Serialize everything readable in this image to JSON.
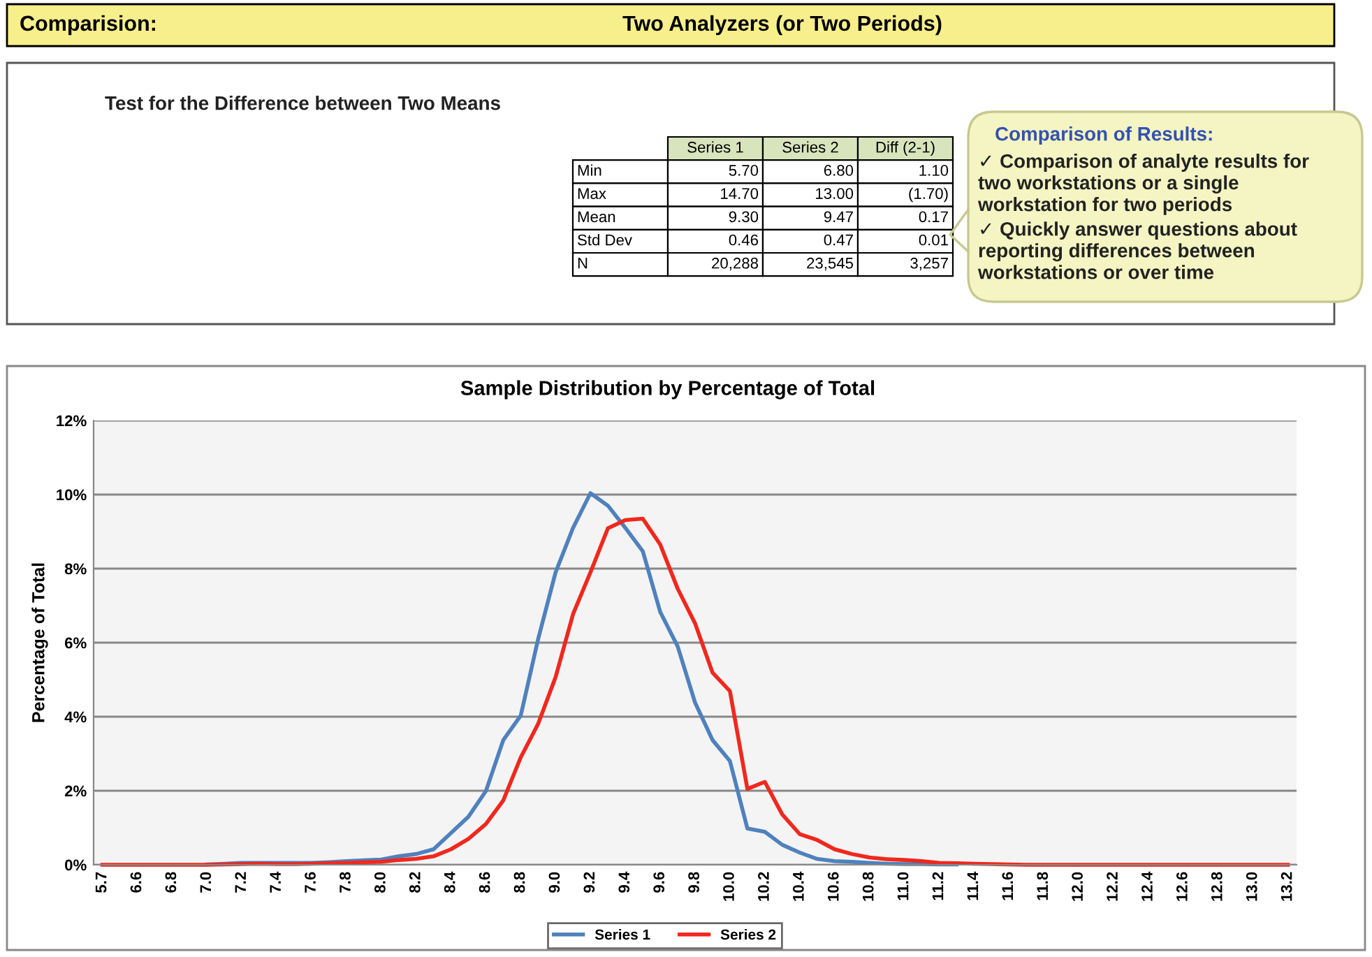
{
  "chart_data": [
    {
      "type": "other",
      "title": "Comparision:",
      "subtitle": "Two Analyzers (or Two Periods)",
      "categories": [
        "Series 1",
        "Series 2",
        "Diff (2-1)"
      ],
      "y_categories": [
        "Min",
        "Max",
        "Mean",
        "Std Dev",
        "N"
      ],
      "cell_labels": [
        [
          "5.70",
          "6.80",
          "1.10"
        ],
        [
          "14.70",
          "13.00",
          "(1.70)"
        ],
        [
          "9.30",
          "9.47",
          "0.17"
        ],
        [
          "0.46",
          "0.47",
          "0.01"
        ],
        [
          "20,288",
          "23,545",
          "3,257"
        ]
      ],
      "annotations": [
        "Test for the Difference between Two Means",
        "Comparison of Results:",
        "✓ Comparison of analyte results for\ntwo workstations or a single\nworkstation for two periods",
        "✓ Quickly answer questions about\nreporting differences between\nworkstations or over time"
      ]
    },
    {
      "type": "line",
      "title": "Sample Distribution by Percentage of Total",
      "ylabel": "Percentage of Total",
      "categories": [
        "5.7",
        null,
        "6.6",
        null,
        "6.8",
        null,
        "7.0",
        null,
        "7.2",
        null,
        "7.4",
        null,
        "7.6",
        null,
        "7.8",
        null,
        "8.0",
        null,
        "8.2",
        null,
        "8.4",
        null,
        "8.6",
        null,
        "8.8",
        null,
        "9.0",
        null,
        "9.2",
        null,
        "9.4",
        null,
        "9.6",
        null,
        "9.8",
        null,
        "10.0",
        null,
        "10.2",
        null,
        "10.4",
        null,
        "10.6",
        null,
        "10.8",
        null,
        "11.0",
        null,
        "11.2",
        null,
        "11.4",
        null,
        "11.6",
        null,
        "11.8",
        null,
        "12.0",
        null,
        "12.2",
        null,
        "12.4",
        null,
        "12.6",
        null,
        "12.8",
        null,
        "13.0",
        null,
        "13.2"
      ],
      "series": [
        {
          "name": "Series 1",
          "color": "#4f81bd",
          "values": [
            null,
            null,
            null,
            null,
            null,
            null,
            0.01,
            0.03,
            0.05,
            0.05,
            0.05,
            0.05,
            0.05,
            0.07,
            0.1,
            0.12,
            0.14,
            0.23,
            0.29,
            0.42,
            0.86,
            1.3,
            1.99,
            3.37,
            4.03,
            6.1,
            7.9,
            9.1,
            10.04,
            9.7,
            9.1,
            8.47,
            6.83,
            5.9,
            4.38,
            3.37,
            2.8,
            0.98,
            0.89,
            0.54,
            0.33,
            0.16,
            0.1,
            0.08,
            0.05,
            0.03,
            0.02,
            0.02,
            0.01,
            0.01,
            null,
            null,
            null,
            null,
            null,
            null,
            null,
            null,
            null,
            null,
            null,
            null,
            null,
            null,
            null,
            null,
            null,
            null,
            null
          ]
        },
        {
          "name": "Series 2",
          "color": "#f0281e",
          "values": [
            0,
            0,
            0,
            0,
            0,
            0,
            0,
            0.01,
            0.02,
            0.03,
            0.02,
            0.02,
            0.03,
            0.04,
            0.05,
            0.07,
            0.08,
            0.13,
            0.16,
            0.23,
            0.42,
            0.7,
            1.1,
            1.74,
            2.9,
            3.81,
            5.07,
            6.77,
            7.9,
            9.09,
            9.31,
            9.35,
            8.65,
            7.46,
            6.52,
            5.19,
            4.69,
            2.05,
            2.24,
            1.36,
            0.83,
            0.67,
            0.42,
            0.29,
            0.2,
            0.15,
            0.13,
            0.1,
            0.05,
            0.04,
            0.03,
            0.02,
            0.01,
            0,
            0,
            0,
            0,
            0,
            0,
            0,
            0,
            0,
            0,
            0,
            0,
            0,
            0,
            0,
            0
          ]
        }
      ],
      "ylim": [
        0,
        12
      ],
      "yticks": [
        {
          "value": 0,
          "label": "0%"
        },
        {
          "value": 2,
          "label": "2%"
        },
        {
          "value": 4,
          "label": "4%"
        },
        {
          "value": 6,
          "label": "6%"
        },
        {
          "value": 8,
          "label": "8%"
        },
        {
          "value": 10,
          "label": "10%"
        },
        {
          "value": 12,
          "label": "12%"
        }
      ],
      "grid": "y",
      "legend": "bottom",
      "marker": "none",
      "line_style": "solid"
    }
  ]
}
